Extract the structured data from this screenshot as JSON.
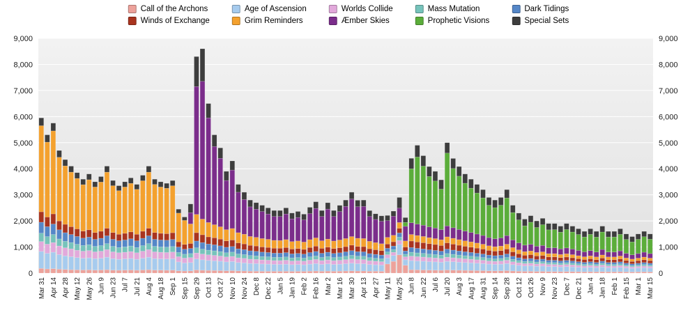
{
  "legend": {
    "items": [
      {
        "label": "Call of the Archons",
        "color": "#EDA29B"
      },
      {
        "label": "Age of Ascension",
        "color": "#A6CBEE"
      },
      {
        "label": "Worlds Collide",
        "color": "#E2A9DB"
      },
      {
        "label": "Mass Mutation",
        "color": "#76C3BB"
      },
      {
        "label": "Dark Tidings",
        "color": "#5587C8"
      },
      {
        "label": "Winds of Exchange",
        "color": "#A9341F"
      },
      {
        "label": "Grim Reminders",
        "color": "#F4A12E"
      },
      {
        "label": "Æmber Skies",
        "color": "#7B2D8B"
      },
      {
        "label": "Prophetic Visions",
        "color": "#5BAD3A"
      },
      {
        "label": "Special Sets",
        "color": "#3D3D3D"
      }
    ]
  },
  "chart_data": {
    "type": "bar",
    "stacked": true,
    "title": "",
    "xlabel": "",
    "ylabel": "",
    "ylim": [
      0,
      9000
    ],
    "y_ticks": [
      0,
      1000,
      2000,
      3000,
      4000,
      5000,
      6000,
      7000,
      8000,
      9000
    ],
    "grid": true,
    "legend_position": "top",
    "plot_background_top": "#F2F2F2",
    "plot_background_bottom": "#E1E1E1",
    "gridline_color": "#FFFFFF",
    "axis_text_color": "#1A1A1A",
    "label_every_n_bars": 2,
    "x_tick_labels": [
      "Mar 31",
      "Apr 14",
      "Apr 28",
      "May 12",
      "May 26",
      "Jun 9",
      "Jun 23",
      "Jul 7",
      "Jul 21",
      "Aug 4",
      "Aug 18",
      "Sep 1",
      "Sep 15",
      "Sep 29",
      "Oct 13",
      "Oct 27",
      "Nov 10",
      "Nov 24",
      "Dec 8",
      "Dec 22",
      "Jan 5",
      "Jan 19",
      "Feb 2",
      "Feb 16",
      "Mar 2",
      "Mar 16",
      "Mar 30",
      "Apr 13",
      "Apr 27",
      "May 11",
      "May 25",
      "Jun 8",
      "Jun 22",
      "Jul 6",
      "Jul 20",
      "Aug 3",
      "Aug 17",
      "Aug 31",
      "Sep 14",
      "Sep 28",
      "Oct 12",
      "Oct 26",
      "Nov 9",
      "Nov 23",
      "Dec 7",
      "Dec 21",
      "Jan 4",
      "Jan 18",
      "Feb 1",
      "Feb 15",
      "Mar 1",
      "Mar 15"
    ],
    "series": [
      {
        "name": "Call of the Archons",
        "color": "#EDA29B",
        "values": [
          180,
          160,
          170,
          150,
          140,
          130,
          125,
          120,
          125,
          115,
          120,
          130,
          115,
          110,
          115,
          120,
          110,
          120,
          130,
          115,
          115,
          110,
          115,
          90,
          80,
          85,
          120,
          110,
          105,
          100,
          95,
          90,
          95,
          85,
          80,
          75,
          75,
          70,
          70,
          70,
          70,
          72,
          68,
          70,
          68,
          75,
          80,
          72,
          78,
          72,
          75,
          80,
          85,
          80,
          80,
          72,
          75,
          70,
          350,
          450,
          700,
          300,
          130,
          125,
          120,
          115,
          112,
          108,
          120,
          115,
          110,
          106,
          102,
          98,
          94,
          88,
          85,
          88,
          95,
          82,
          74,
          68,
          70,
          65,
          67,
          61,
          61,
          58,
          61,
          58,
          54,
          51,
          54,
          51,
          57,
          51,
          51,
          54,
          48,
          44,
          48,
          51,
          48
        ]
      },
      {
        "name": "Age of Ascension",
        "color": "#A6CBEE",
        "values": [
          650,
          600,
          630,
          560,
          520,
          500,
          470,
          450,
          460,
          440,
          450,
          480,
          440,
          420,
          430,
          440,
          420,
          450,
          480,
          440,
          430,
          430,
          435,
          340,
          310,
          320,
          420,
          400,
          380,
          370,
          360,
          340,
          350,
          320,
          310,
          295,
          290,
          280,
          275,
          265,
          265,
          270,
          255,
          260,
          252,
          270,
          285,
          262,
          275,
          260,
          268,
          280,
          295,
          282,
          280,
          258,
          245,
          238,
          230,
          225,
          400,
          210,
          350,
          340,
          335,
          325,
          318,
          308,
          330,
          320,
          310,
          300,
          292,
          282,
          272,
          258,
          250,
          256,
          272,
          242,
          222,
          206,
          212,
          198,
          204,
          188,
          188,
          180,
          187,
          179,
          169,
          159,
          168,
          158,
          176,
          158,
          158,
          167,
          148,
          138,
          147,
          157,
          147
        ]
      },
      {
        "name": "Worlds Collide",
        "color": "#E2A9DB",
        "values": [
          380,
          350,
          370,
          330,
          310,
          300,
          280,
          270,
          280,
          260,
          270,
          290,
          260,
          250,
          255,
          265,
          250,
          270,
          290,
          260,
          255,
          250,
          260,
          200,
          185,
          190,
          230,
          220,
          215,
          210,
          200,
          190,
          195,
          180,
          175,
          165,
          160,
          155,
          150,
          145,
          145,
          150,
          140,
          145,
          138,
          150,
          158,
          145,
          152,
          143,
          148,
          155,
          163,
          156,
          155,
          142,
          135,
          130,
          126,
          123,
          150,
          115,
          170,
          165,
          160,
          155,
          150,
          145,
          160,
          152,
          146,
          140,
          136,
          130,
          125,
          118,
          114,
          117,
          125,
          110,
          100,
          92,
          95,
          88,
          91,
          83,
          83,
          79,
          82,
          78,
          74,
          69,
          73,
          68,
          77,
          68,
          68,
          72,
          64,
          59,
          63,
          67,
          63
        ]
      },
      {
        "name": "Mass Mutation",
        "color": "#76C3BB",
        "values": [
          320,
          290,
          310,
          270,
          250,
          240,
          230,
          220,
          225,
          210,
          215,
          230,
          210,
          200,
          205,
          215,
          200,
          215,
          230,
          210,
          205,
          205,
          210,
          160,
          150,
          155,
          200,
          190,
          180,
          175,
          170,
          160,
          165,
          150,
          145,
          140,
          135,
          130,
          130,
          125,
          125,
          128,
          120,
          122,
          118,
          128,
          135,
          123,
          130,
          122,
          126,
          132,
          140,
          133,
          132,
          121,
          115,
          111,
          107,
          105,
          130,
          98,
          150,
          145,
          140,
          135,
          131,
          126,
          140,
          133,
          127,
          122,
          118,
          113,
          108,
          102,
          98,
          101,
          108,
          95,
          86,
          79,
          82,
          76,
          78,
          71,
          71,
          68,
          71,
          67,
          63,
          59,
          63,
          58,
          66,
          58,
          58,
          62,
          55,
          50,
          54,
          58,
          54
        ]
      },
      {
        "name": "Dark Tidings",
        "color": "#5587C8",
        "values": [
          420,
          380,
          400,
          350,
          330,
          310,
          300,
          280,
          290,
          270,
          280,
          300,
          270,
          260,
          265,
          275,
          260,
          280,
          300,
          270,
          265,
          265,
          270,
          210,
          190,
          195,
          260,
          250,
          235,
          230,
          220,
          210,
          215,
          195,
          190,
          180,
          175,
          170,
          165,
          160,
          160,
          165,
          155,
          158,
          152,
          165,
          172,
          158,
          165,
          157,
          162,
          168,
          178,
          170,
          168,
          155,
          148,
          143,
          138,
          135,
          160,
          126,
          180,
          175,
          170,
          165,
          160,
          154,
          170,
          162,
          155,
          149,
          144,
          138,
          133,
          125,
          121,
          124,
          133,
          117,
          106,
          98,
          101,
          94,
          97,
          88,
          88,
          84,
          87,
          83,
          78,
          73,
          77,
          72,
          81,
          72,
          72,
          76,
          67,
          62,
          66,
          71,
          66
        ]
      },
      {
        "name": "Winds of Exchange",
        "color": "#A9341F",
        "values": [
          400,
          370,
          390,
          340,
          320,
          300,
          290,
          270,
          280,
          260,
          270,
          290,
          260,
          250,
          255,
          265,
          250,
          270,
          290,
          260,
          255,
          252,
          258,
          200,
          185,
          190,
          320,
          300,
          275,
          270,
          260,
          245,
          250,
          230,
          220,
          210,
          205,
          200,
          195,
          190,
          190,
          195,
          185,
          188,
          182,
          195,
          205,
          190,
          198,
          188,
          193,
          200,
          212,
          202,
          200,
          186,
          178,
          172,
          166,
          163,
          180,
          152,
          250,
          245,
          240,
          232,
          226,
          218,
          240,
          230,
          220,
          212,
          205,
          198,
          190,
          180,
          174,
          178,
          190,
          168,
          154,
          143,
          147,
          138,
          141,
          130,
          130,
          125,
          129,
          124,
          117,
          110,
          116,
          109,
          122,
          109,
          109,
          115,
          102,
          95,
          101,
          108,
          101
        ]
      },
      {
        "name": "Grim Reminders",
        "color": "#F4A12E",
        "values": [
          3300,
          2870,
          3180,
          2440,
          2240,
          2090,
          1935,
          1780,
          1920,
          1745,
          1885,
          2150,
          1795,
          1670,
          1775,
          1860,
          1720,
          1935,
          2150,
          1845,
          1775,
          1740,
          1800,
          1100,
          920,
          750,
          700,
          600,
          550,
          500,
          470,
          430,
          440,
          390,
          370,
          340,
          330,
          320,
          310,
          300,
          295,
          305,
          285,
          290,
          280,
          300,
          315,
          290,
          305,
          288,
          297,
          310,
          328,
          312,
          310,
          285,
          272,
          262,
          253,
          248,
          220,
          232,
          250,
          245,
          240,
          232,
          226,
          218,
          230,
          222,
          214,
          206,
          200,
          192,
          185,
          175,
          169,
          173,
          184,
          163,
          149,
          138,
          142,
          132,
          136,
          125,
          125,
          119,
          124,
          118,
          111,
          104,
          110,
          103,
          116,
          103,
          103,
          109,
          96,
          89,
          95,
          102,
          95
        ]
      },
      {
        "name": "Æmber Skies",
        "color": "#7B2D8B",
        "values": [
          0,
          0,
          0,
          0,
          0,
          0,
          0,
          0,
          0,
          0,
          0,
          0,
          0,
          0,
          0,
          0,
          0,
          0,
          0,
          0,
          0,
          0,
          0,
          0,
          0,
          430,
          4900,
          5280,
          4010,
          2995,
          2625,
          1885,
          2240,
          1550,
          1330,
          1135,
          1080,
          1035,
          970,
          915,
          920,
          980,
          870,
          900,
          850,
          1000,
          1130,
          930,
          1150,
          940,
          1090,
          1230,
          1440,
          1210,
          1230,
          950,
          890,
          860,
          640,
          730,
          550,
          560,
          450,
          440,
          430,
          415,
          405,
          390,
          420,
          405,
          390,
          375,
          362,
          348,
          335,
          315,
          305,
          312,
          332,
          295,
          268,
          248,
          255,
          238,
          245,
          225,
          225,
          215,
          224,
          214,
          202,
          190,
          200,
          189,
          212,
          189,
          189,
          198,
          177,
          164,
          176,
          187,
          176
        ]
      },
      {
        "name": "Prophetic Visions",
        "color": "#5BAD3A",
        "values": [
          0,
          0,
          0,
          0,
          0,
          0,
          0,
          0,
          0,
          0,
          0,
          0,
          0,
          0,
          0,
          0,
          0,
          0,
          0,
          0,
          0,
          0,
          0,
          0,
          0,
          0,
          0,
          0,
          0,
          0,
          0,
          0,
          0,
          0,
          0,
          0,
          0,
          0,
          0,
          0,
          0,
          0,
          0,
          0,
          0,
          0,
          0,
          0,
          0,
          0,
          0,
          0,
          0,
          0,
          0,
          0,
          0,
          0,
          0,
          0,
          0,
          150,
          2070,
          2570,
          2265,
          1930,
          1802,
          1553,
          2790,
          2271,
          2043,
          1835,
          1696,
          1571,
          1440,
          1239,
          1194,
          1253,
          1441,
          1048,
          881,
          740,
          846,
          721,
          796,
          688,
          694,
          642,
          705,
          654,
          612,
          570,
          624,
          572,
          668,
          577,
          577,
          632,
          533,
          494,
          545,
          594,
          550
        ]
      },
      {
        "name": "Special Sets",
        "color": "#3D3D3D",
        "values": [
          300,
          280,
          300,
          260,
          240,
          230,
          220,
          210,
          220,
          200,
          210,
          230,
          200,
          190,
          200,
          210,
          190,
          210,
          230,
          200,
          200,
          190,
          200,
          150,
          130,
          335,
          1150,
          1250,
          550,
          450,
          400,
          350,
          350,
          300,
          280,
          260,
          250,
          240,
          235,
          230,
          230,
          235,
          225,
          230,
          220,
          240,
          255,
          230,
          245,
          230,
          238,
          245,
          260,
          248,
          245,
          228,
          215,
          208,
          200,
          197,
          410,
          185,
          400,
          450,
          400,
          380,
          370,
          355,
          400,
          385,
          370,
          355,
          345,
          330,
          318,
          300,
          290,
          298,
          320,
          280,
          260,
          258,
          250,
          250,
          245,
          241,
          235,
          230,
          230,
          225,
          220,
          215,
          215,
          220,
          225,
          215,
          215,
          215,
          210,
          205,
          205,
          205,
          200
        ]
      }
    ]
  }
}
